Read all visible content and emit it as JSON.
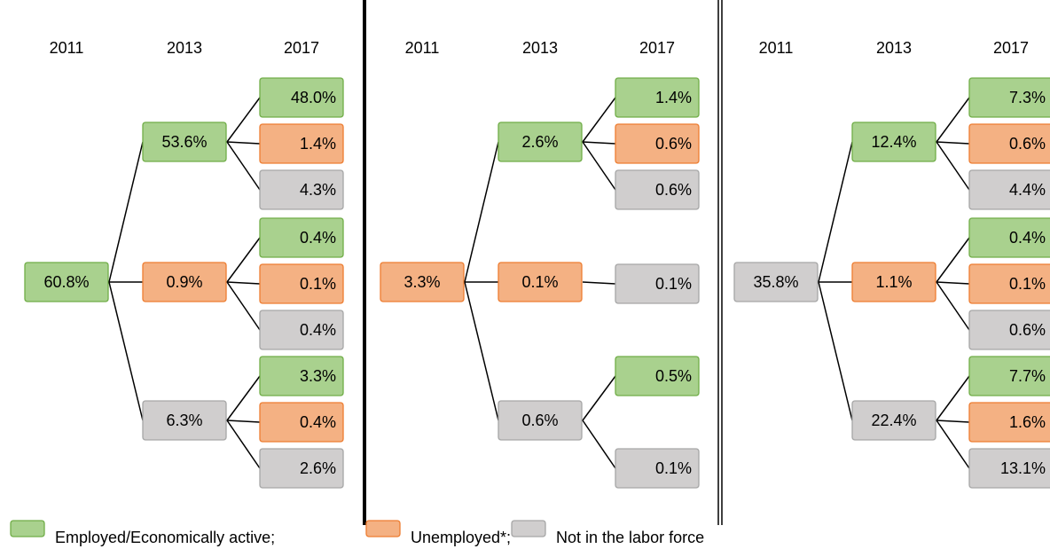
{
  "panels": [
    {
      "years": [
        "2011",
        "2013",
        "2017"
      ],
      "root": {
        "label": "60.8%",
        "status": "employed"
      },
      "children": [
        {
          "label": "53.6%",
          "status": "employed",
          "children": [
            {
              "label": "48.0%",
              "status": "employed"
            },
            {
              "label": "1.4%",
              "status": "unemployed"
            },
            {
              "label": "4.3%",
              "status": "inactive"
            }
          ]
        },
        {
          "label": "0.9%",
          "status": "unemployed",
          "children": [
            {
              "label": "0.4%",
              "status": "employed"
            },
            {
              "label": "0.1%",
              "status": "unemployed"
            },
            {
              "label": "0.4%",
              "status": "inactive"
            }
          ]
        },
        {
          "label": "6.3%",
          "status": "inactive",
          "children": [
            {
              "label": "3.3%",
              "status": "employed"
            },
            {
              "label": "0.4%",
              "status": "unemployed"
            },
            {
              "label": "2.6%",
              "status": "inactive"
            }
          ]
        }
      ]
    },
    {
      "years": [
        "2011",
        "2013",
        "2017"
      ],
      "root": {
        "label": "3.3%",
        "status": "unemployed"
      },
      "children": [
        {
          "label": "2.6%",
          "status": "employed",
          "children": [
            {
              "label": "1.4%",
              "status": "employed"
            },
            {
              "label": "0.6%",
              "status": "unemployed"
            },
            {
              "label": "0.6%",
              "status": "inactive"
            }
          ]
        },
        {
          "label": "0.1%",
          "status": "unemployed",
          "children": [
            {
              "label": "0.1%",
              "status": "inactive"
            }
          ]
        },
        {
          "label": "0.6%",
          "status": "inactive",
          "children": [
            {
              "label": "0.5%",
              "status": "employed"
            },
            {
              "label": "0.1%",
              "status": "inactive"
            }
          ]
        }
      ]
    },
    {
      "years": [
        "2011",
        "2013",
        "2017"
      ],
      "root": {
        "label": "35.8%",
        "status": "inactive"
      },
      "children": [
        {
          "label": "12.4%",
          "status": "employed",
          "children": [
            {
              "label": "7.3%",
              "status": "employed"
            },
            {
              "label": "0.6%",
              "status": "unemployed"
            },
            {
              "label": "4.4%",
              "status": "inactive"
            }
          ]
        },
        {
          "label": "1.1%",
          "status": "unemployed",
          "children": [
            {
              "label": "0.4%",
              "status": "employed"
            },
            {
              "label": "0.1%",
              "status": "unemployed"
            },
            {
              "label": "0.6%",
              "status": "inactive"
            }
          ]
        },
        {
          "label": "22.4%",
          "status": "inactive",
          "children": [
            {
              "label": "7.7%",
              "status": "employed"
            },
            {
              "label": "1.6%",
              "status": "unemployed"
            },
            {
              "label": "13.1%",
              "status": "inactive"
            }
          ]
        }
      ]
    }
  ],
  "legend": [
    {
      "label": "Employed/Economically active;",
      "status": "employed"
    },
    {
      "label": "Unemployed*;",
      "status": "unemployed"
    },
    {
      "label": "Not in the labor force",
      "status": "inactive"
    }
  ]
}
